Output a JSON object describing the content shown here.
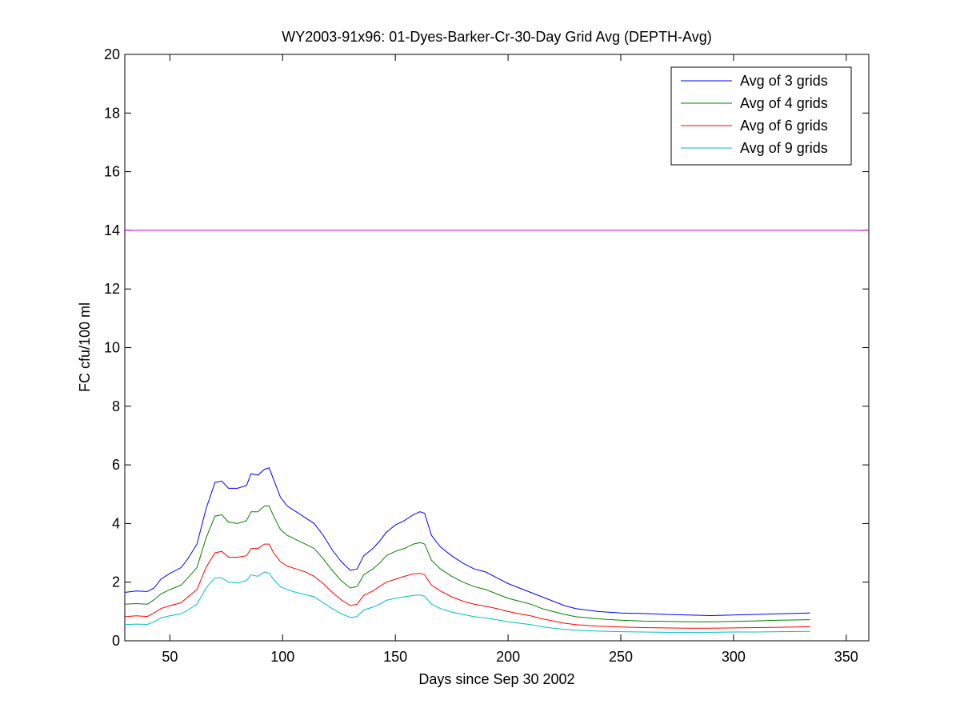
{
  "chart_data": {
    "type": "line",
    "title": "WY2003-91x96: 01-Dyes-Barker-Cr-30-Day Grid Avg (DEPTH-Avg)",
    "xlabel": "Days since Sep 30 2002",
    "ylabel": "FC cfu/100 ml",
    "xlim": [
      30,
      360
    ],
    "ylim": [
      0,
      20
    ],
    "xticks": [
      50,
      100,
      150,
      200,
      250,
      300,
      350
    ],
    "yticks": [
      0,
      2,
      4,
      6,
      8,
      10,
      12,
      14,
      16,
      18,
      20
    ],
    "grid": false,
    "legend_position": "top-right",
    "reference_line": {
      "y": 14,
      "color": "#cc00cc"
    },
    "series": [
      {
        "name": "Avg of 3 grids",
        "color": "#0000ff",
        "x": [
          30,
          35,
          40,
          43,
          46,
          50,
          55,
          58,
          62,
          66,
          70,
          73,
          76,
          80,
          84,
          86,
          89,
          92,
          94,
          96,
          99,
          102,
          106,
          110,
          114,
          118,
          122,
          126,
          130,
          133,
          136,
          140,
          143,
          146,
          150,
          154,
          158,
          161,
          163,
          166,
          170,
          175,
          180,
          185,
          190,
          195,
          200,
          205,
          210,
          215,
          220,
          225,
          230,
          240,
          250,
          260,
          270,
          280,
          290,
          300,
          310,
          320,
          334
        ],
        "y": [
          1.65,
          1.7,
          1.68,
          1.8,
          2.1,
          2.3,
          2.5,
          2.8,
          3.3,
          4.5,
          5.4,
          5.45,
          5.2,
          5.2,
          5.3,
          5.7,
          5.65,
          5.85,
          5.9,
          5.5,
          4.9,
          4.6,
          4.4,
          4.2,
          4.0,
          3.6,
          3.1,
          2.7,
          2.4,
          2.45,
          2.9,
          3.15,
          3.4,
          3.7,
          3.95,
          4.1,
          4.3,
          4.4,
          4.35,
          3.6,
          3.2,
          2.9,
          2.65,
          2.45,
          2.35,
          2.15,
          1.95,
          1.8,
          1.65,
          1.5,
          1.35,
          1.2,
          1.1,
          1.0,
          0.95,
          0.93,
          0.9,
          0.88,
          0.86,
          0.88,
          0.9,
          0.92,
          0.95
        ]
      },
      {
        "name": "Avg of 4 grids",
        "color": "#008000",
        "x": [
          30,
          35,
          40,
          43,
          46,
          50,
          55,
          58,
          62,
          66,
          70,
          73,
          76,
          80,
          84,
          86,
          89,
          92,
          94,
          96,
          99,
          102,
          106,
          110,
          114,
          118,
          122,
          126,
          130,
          133,
          136,
          140,
          143,
          146,
          150,
          154,
          158,
          161,
          163,
          166,
          170,
          175,
          180,
          185,
          190,
          195,
          200,
          205,
          210,
          215,
          220,
          225,
          230,
          240,
          250,
          260,
          270,
          280,
          290,
          300,
          310,
          320,
          334
        ],
        "y": [
          1.25,
          1.27,
          1.25,
          1.4,
          1.6,
          1.75,
          1.9,
          2.15,
          2.5,
          3.5,
          4.25,
          4.3,
          4.05,
          4.0,
          4.1,
          4.4,
          4.4,
          4.6,
          4.6,
          4.25,
          3.8,
          3.6,
          3.45,
          3.3,
          3.15,
          2.8,
          2.4,
          2.05,
          1.8,
          1.85,
          2.25,
          2.45,
          2.65,
          2.9,
          3.05,
          3.15,
          3.3,
          3.35,
          3.3,
          2.75,
          2.45,
          2.2,
          2.0,
          1.85,
          1.75,
          1.6,
          1.45,
          1.35,
          1.25,
          1.1,
          1.0,
          0.9,
          0.82,
          0.75,
          0.7,
          0.67,
          0.66,
          0.65,
          0.65,
          0.66,
          0.68,
          0.7,
          0.72
        ]
      },
      {
        "name": "Avg of 6 grids",
        "color": "#ff0000",
        "x": [
          30,
          35,
          40,
          43,
          46,
          50,
          55,
          58,
          62,
          66,
          70,
          73,
          76,
          80,
          84,
          86,
          89,
          92,
          94,
          96,
          99,
          102,
          106,
          110,
          114,
          118,
          122,
          126,
          130,
          133,
          136,
          140,
          143,
          146,
          150,
          154,
          158,
          161,
          163,
          166,
          170,
          175,
          180,
          185,
          190,
          195,
          200,
          205,
          210,
          215,
          220,
          225,
          230,
          240,
          250,
          260,
          270,
          280,
          290,
          300,
          310,
          320,
          334
        ],
        "y": [
          0.82,
          0.85,
          0.83,
          0.95,
          1.1,
          1.2,
          1.3,
          1.5,
          1.75,
          2.5,
          3.0,
          3.05,
          2.85,
          2.85,
          2.9,
          3.15,
          3.15,
          3.3,
          3.3,
          3.0,
          2.7,
          2.55,
          2.45,
          2.35,
          2.2,
          1.95,
          1.65,
          1.4,
          1.2,
          1.25,
          1.55,
          1.7,
          1.85,
          2.0,
          2.1,
          2.2,
          2.28,
          2.3,
          2.25,
          1.9,
          1.7,
          1.5,
          1.35,
          1.25,
          1.18,
          1.1,
          1.0,
          0.92,
          0.85,
          0.75,
          0.68,
          0.6,
          0.55,
          0.5,
          0.47,
          0.45,
          0.44,
          0.43,
          0.43,
          0.44,
          0.45,
          0.46,
          0.48
        ]
      },
      {
        "name": "Avg of 9 grids",
        "color": "#00bfbf",
        "x": [
          30,
          35,
          40,
          43,
          46,
          50,
          55,
          58,
          62,
          66,
          70,
          73,
          76,
          80,
          84,
          86,
          89,
          92,
          94,
          96,
          99,
          102,
          106,
          110,
          114,
          118,
          122,
          126,
          130,
          133,
          136,
          140,
          143,
          146,
          150,
          154,
          158,
          161,
          163,
          166,
          170,
          175,
          180,
          185,
          190,
          195,
          200,
          205,
          210,
          215,
          220,
          225,
          230,
          240,
          250,
          260,
          270,
          280,
          290,
          300,
          310,
          320,
          334
        ],
        "y": [
          0.55,
          0.57,
          0.56,
          0.65,
          0.78,
          0.85,
          0.92,
          1.05,
          1.25,
          1.8,
          2.15,
          2.15,
          2.0,
          1.98,
          2.05,
          2.25,
          2.2,
          2.35,
          2.3,
          2.1,
          1.85,
          1.75,
          1.65,
          1.58,
          1.5,
          1.3,
          1.1,
          0.92,
          0.8,
          0.82,
          1.05,
          1.15,
          1.25,
          1.38,
          1.45,
          1.5,
          1.55,
          1.56,
          1.52,
          1.25,
          1.1,
          0.98,
          0.9,
          0.82,
          0.78,
          0.72,
          0.65,
          0.6,
          0.55,
          0.48,
          0.43,
          0.39,
          0.36,
          0.33,
          0.31,
          0.3,
          0.29,
          0.29,
          0.29,
          0.3,
          0.3,
          0.31,
          0.32
        ]
      }
    ]
  }
}
